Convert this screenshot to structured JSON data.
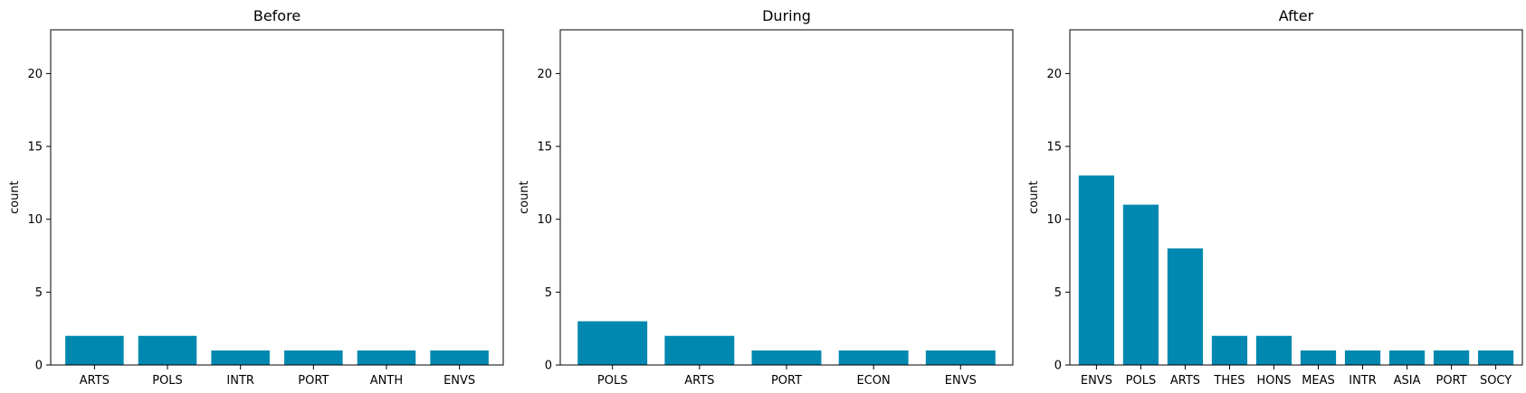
{
  "bar_color": "#0088b0",
  "chart_data": [
    {
      "type": "bar",
      "title": "Before",
      "xlabel": "",
      "ylabel": "count",
      "ylim": [
        0,
        23
      ],
      "yticks": [
        0,
        5,
        10,
        15,
        20
      ],
      "categories": [
        "ARTS",
        "POLS",
        "INTR",
        "PORT",
        "ANTH",
        "ENVS"
      ],
      "values": [
        2,
        2,
        1,
        1,
        1,
        1
      ]
    },
    {
      "type": "bar",
      "title": "During",
      "xlabel": "",
      "ylabel": "count",
      "ylim": [
        0,
        23
      ],
      "yticks": [
        0,
        5,
        10,
        15,
        20
      ],
      "categories": [
        "POLS",
        "ARTS",
        "PORT",
        "ECON",
        "ENVS"
      ],
      "values": [
        3,
        2,
        1,
        1,
        1
      ]
    },
    {
      "type": "bar",
      "title": "After",
      "xlabel": "",
      "ylabel": "count",
      "ylim": [
        0,
        23
      ],
      "yticks": [
        0,
        5,
        10,
        15,
        20
      ],
      "categories": [
        "ENVS",
        "POLS",
        "ARTS",
        "THES",
        "HONS",
        "MEAS",
        "INTR",
        "ASIA",
        "PORT",
        "SOCY"
      ],
      "values": [
        13,
        11,
        8,
        2,
        2,
        1,
        1,
        1,
        1,
        1
      ]
    }
  ]
}
